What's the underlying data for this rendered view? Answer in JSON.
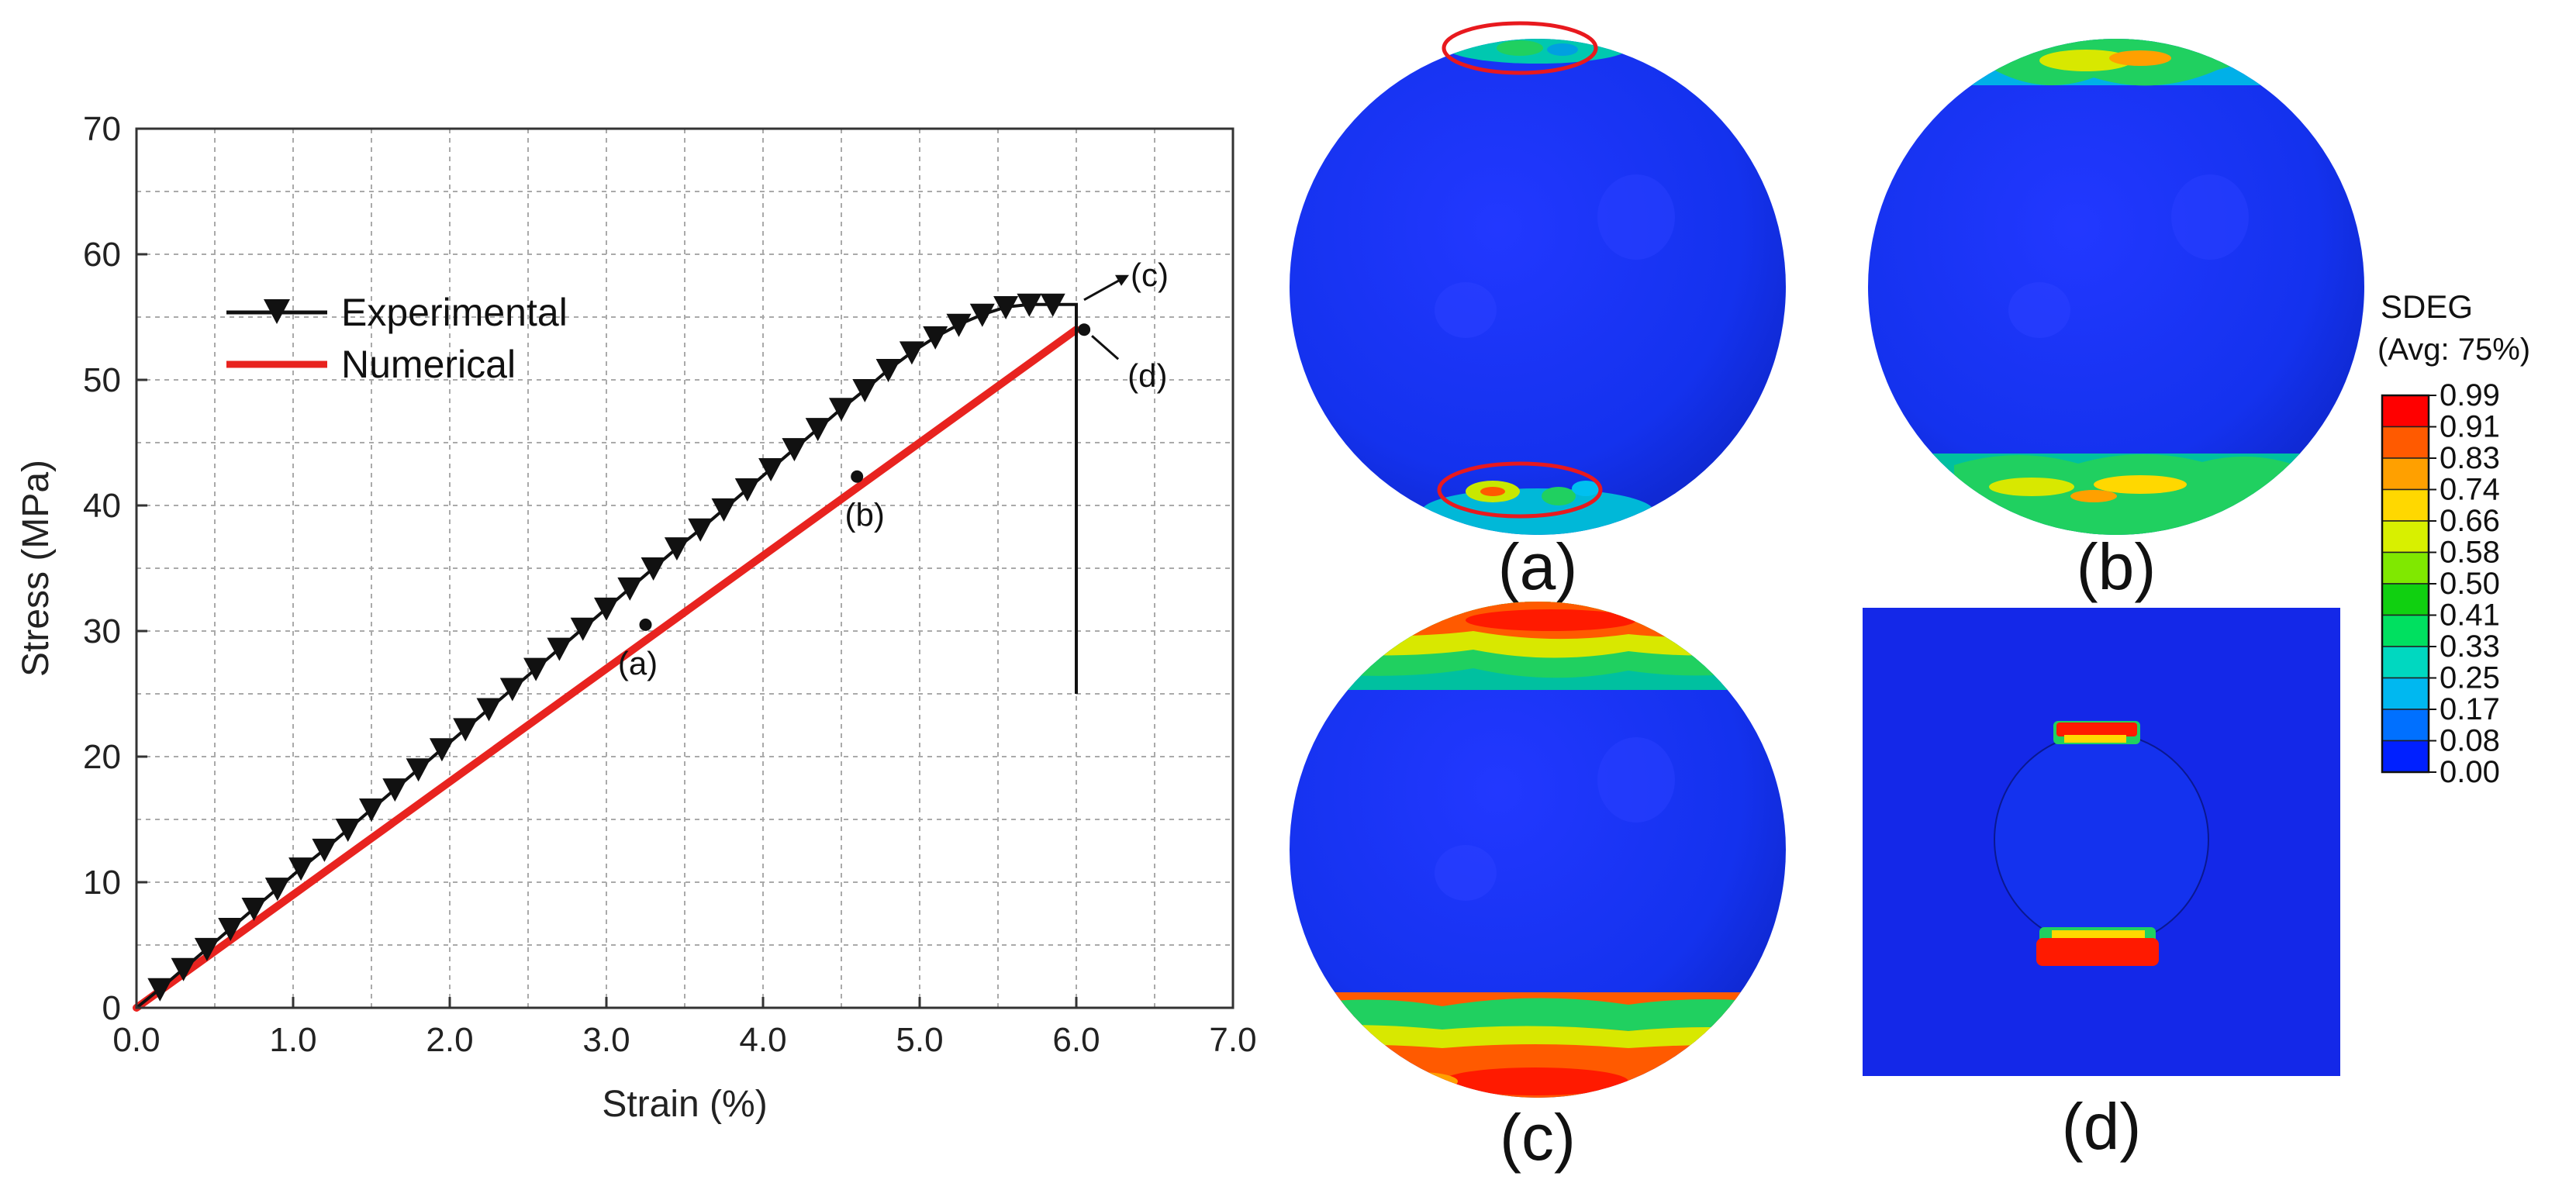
{
  "chart_data": {
    "type": "line",
    "xlabel": "Strain (%)",
    "ylabel": "Stress (MPa)",
    "xlim": [
      0,
      7
    ],
    "ylim": [
      0,
      70
    ],
    "xticks": [
      "0.0",
      "1.0",
      "2.0",
      "3.0",
      "4.0",
      "5.0",
      "6.0",
      "7.0"
    ],
    "yticks": [
      "0",
      "10",
      "20",
      "30",
      "40",
      "50",
      "60",
      "70"
    ],
    "grid": true,
    "legend": "upper-left",
    "series": [
      {
        "name": "Experimental",
        "color": "#111111",
        "marker": "triangle-down",
        "x": [
          0.15,
          0.3,
          0.45,
          0.6,
          0.75,
          0.9,
          1.05,
          1.2,
          1.35,
          1.5,
          1.65,
          1.8,
          1.95,
          2.1,
          2.25,
          2.4,
          2.55,
          2.7,
          2.85,
          3.0,
          3.15,
          3.3,
          3.45,
          3.6,
          3.75,
          3.9,
          4.05,
          4.2,
          4.35,
          4.5,
          4.65,
          4.8,
          4.95,
          5.1,
          5.25,
          5.4,
          5.55,
          5.7,
          5.85,
          5.95,
          6.0
        ],
        "y": [
          1.5,
          3.1,
          4.7,
          6.3,
          7.9,
          9.5,
          11.1,
          12.6,
          14.2,
          15.8,
          17.4,
          19.0,
          20.6,
          22.2,
          23.8,
          25.4,
          27.0,
          28.6,
          30.2,
          31.8,
          33.4,
          35.0,
          36.6,
          38.1,
          39.7,
          41.3,
          42.9,
          44.5,
          46.1,
          47.7,
          49.2,
          50.8,
          52.2,
          53.4,
          54.4,
          55.2,
          55.8,
          56.0,
          56.0,
          56.0,
          56.0
        ],
        "drop_to": 25
      },
      {
        "name": "Numerical",
        "color": "#e8231f",
        "x": [
          0.0,
          6.0
        ],
        "y": [
          0.0,
          54.0
        ]
      }
    ],
    "annotations": [
      {
        "label": "(a)",
        "x": 3.25,
        "y": 30.5
      },
      {
        "label": "(b)",
        "x": 4.6,
        "y": 42.3
      },
      {
        "label": "(c)",
        "x": 6.0,
        "y": 56.0
      },
      {
        "label": "(d)",
        "x": 6.05,
        "y": 54.0
      }
    ]
  },
  "panels": [
    {
      "label": "(a)"
    },
    {
      "label": "(b)"
    },
    {
      "label": "(c)"
    },
    {
      "label": "(d)"
    }
  ],
  "colorbar": {
    "title": "SDEG",
    "subtitle": "(Avg: 75%)",
    "levels": [
      "0.99",
      "0.91",
      "0.83",
      "0.74",
      "0.66",
      "0.58",
      "0.50",
      "0.41",
      "0.33",
      "0.25",
      "0.17",
      "0.08",
      "0.00"
    ],
    "colors": [
      "#ff0000",
      "#ff5a00",
      "#ffa000",
      "#ffd800",
      "#d8f000",
      "#80e800",
      "#10d010",
      "#00e060",
      "#00d8c0",
      "#00b8f0",
      "#0070ff",
      "#0020ff",
      "#0000e8"
    ]
  },
  "colors": {
    "sphere_blue": "#1432f0",
    "plate_blue": "#1428e8",
    "highlight_ring": "#e8191e"
  }
}
